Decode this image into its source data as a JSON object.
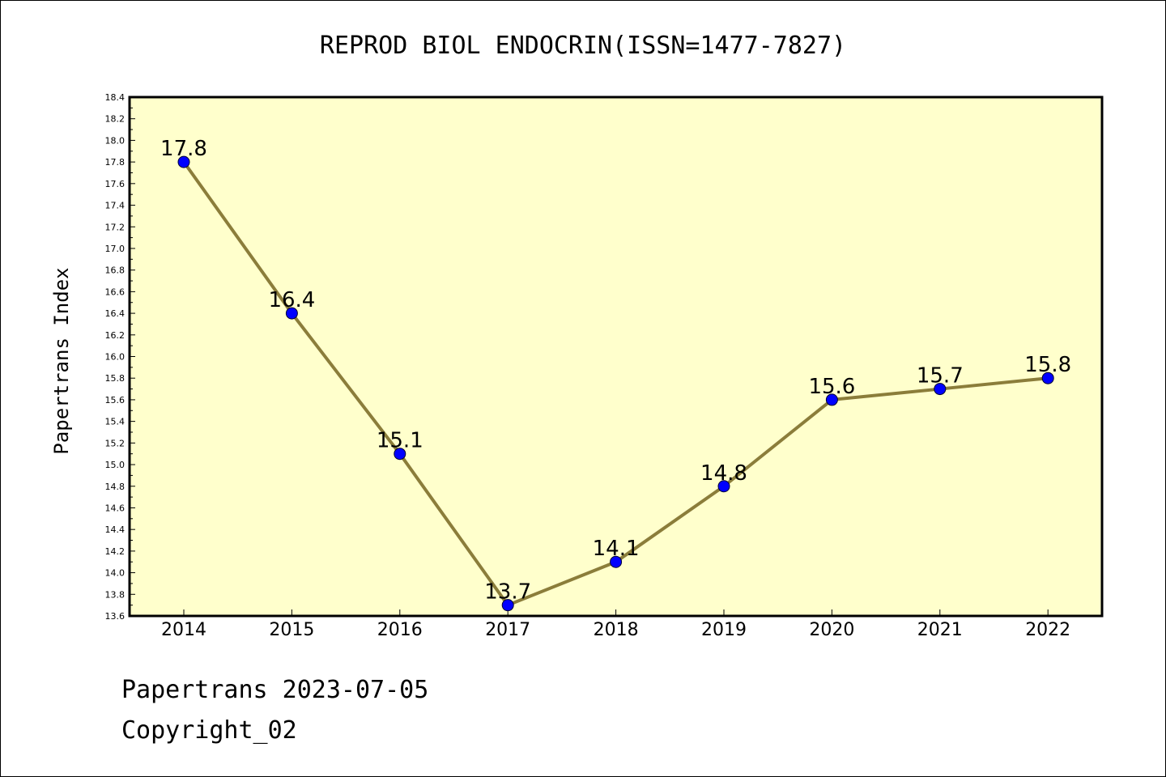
{
  "footer": {
    "line1": "Papertrans 2023-07-05",
    "line2": "Copyright_02"
  },
  "colors": {
    "plot_background": "#ffffcc",
    "line": "#8b7d3a",
    "marker": "#0000ff",
    "frame": "#000000"
  },
  "chart_data": {
    "type": "line",
    "title": "REPROD BIOL ENDOCRIN(ISSN=1477-7827)",
    "xlabel": "",
    "ylabel": "Papertrans Index",
    "categories": [
      "2014",
      "2015",
      "2016",
      "2017",
      "2018",
      "2019",
      "2020",
      "2021",
      "2022"
    ],
    "series": [
      {
        "values": [
          17.8,
          16.4,
          15.1,
          13.7,
          14.1,
          14.8,
          15.6,
          15.7,
          15.8
        ],
        "labels": [
          "17.8",
          "16.4",
          "15.1",
          "13.7",
          "14.1",
          "14.8",
          "15.6",
          "15.7",
          "15.8"
        ]
      }
    ],
    "ylim": [
      13.6,
      18.4
    ],
    "yticks": [
      "13.6",
      "13.8",
      "14.0",
      "14.2",
      "14.4",
      "14.6",
      "14.8",
      "15.0",
      "15.2",
      "15.4",
      "15.6",
      "15.8",
      "16.0",
      "16.2",
      "16.4",
      "16.6",
      "16.8",
      "17.0",
      "17.2",
      "17.4",
      "17.6",
      "17.8",
      "18.0",
      "18.2",
      "18.4"
    ],
    "grid": false,
    "legend": "none"
  }
}
